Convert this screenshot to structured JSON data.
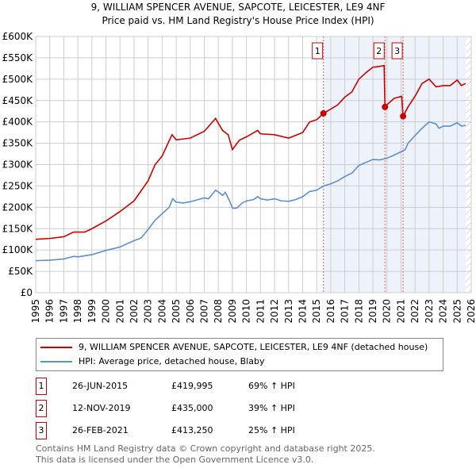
{
  "title": "9, WILLIAM SPENCER AVENUE, SAPCOTE, LEICESTER, LE9 4NF",
  "subtitle": "Price paid vs. HM Land Registry's House Price Index (HPI)",
  "chart_data": {
    "type": "line",
    "title": "9, WILLIAM SPENCER AVENUE, SAPCOTE, LEICESTER, LE9 4NF",
    "subtitle": "Price paid vs. HM Land Registry's House Price Index (HPI)",
    "xlim": [
      1995,
      2026
    ],
    "ylim": [
      0,
      600000
    ],
    "ytick_labels": [
      "£0",
      "£50K",
      "£100K",
      "£150K",
      "£200K",
      "£250K",
      "£300K",
      "£350K",
      "£400K",
      "£450K",
      "£500K",
      "£550K",
      "£600K"
    ],
    "xtick_labels": [
      "1995",
      "1996",
      "1997",
      "1998",
      "1999",
      "2000",
      "2001",
      "2002",
      "2003",
      "2004",
      "2005",
      "2006",
      "2007",
      "2008",
      "2009",
      "2010",
      "2011",
      "2012",
      "2013",
      "2014",
      "2015",
      "2016",
      "2017",
      "2018",
      "2019",
      "2020",
      "2021",
      "2022",
      "2023",
      "2024",
      "2025",
      "2026"
    ],
    "grid": true,
    "series": [
      {
        "name": "9, WILLIAM SPENCER AVENUE, SAPCOTE, LEICESTER, LE9 4NF (detached house)",
        "color": "#cc0000",
        "x": [
          1995,
          1996,
          1997,
          1997.7,
          1998.5,
          1999,
          2000,
          2001,
          2002,
          2003,
          2003.5,
          2004,
          2004.7,
          2005,
          2006,
          2007,
          2007.8,
          2008.3,
          2008.7,
          2009,
          2009.5,
          2010,
          2010.8,
          2011,
          2012,
          2013,
          2014,
          2014.5,
          2015,
          2015.48,
          2016,
          2016.5,
          2017,
          2017.5,
          2018,
          2018.5,
          2019,
          2019.5,
          2019.8,
          2019.86,
          2020,
          2020.5,
          2021.05,
          2021.15,
          2021.5,
          2022,
          2022.5,
          2023,
          2023.5,
          2024,
          2024.5,
          2025,
          2025.3,
          2025.6
        ],
        "y": [
          125000,
          127000,
          131000,
          142000,
          142000,
          150000,
          168000,
          190000,
          215000,
          262000,
          300000,
          320000,
          370000,
          358000,
          362000,
          378000,
          408000,
          380000,
          370000,
          335000,
          357000,
          365000,
          380000,
          372000,
          370000,
          362000,
          375000,
          400000,
          405000,
          419995,
          430000,
          440000,
          458000,
          470000,
          500000,
          515000,
          528000,
          530000,
          532000,
          435000,
          440000,
          455000,
          460000,
          413250,
          435000,
          460000,
          490000,
          500000,
          482000,
          485000,
          485000,
          498000,
          485000,
          490000
        ]
      },
      {
        "name": "HPI: Average price, detached house, Blaby",
        "color": "#5b8fd0",
        "x": [
          1995,
          1996,
          1997,
          1997.7,
          1998,
          1999,
          2000,
          2001,
          2002,
          2002.5,
          2003,
          2003.5,
          2004,
          2004.5,
          2004.75,
          2005,
          2005.5,
          2006,
          2007,
          2007.3,
          2007.8,
          2008,
          2008.3,
          2008.5,
          2008.8,
          2009,
          2009.3,
          2009.7,
          2010,
          2010.5,
          2010.8,
          2011,
          2011.5,
          2012,
          2012.5,
          2013,
          2013.5,
          2014,
          2014.5,
          2015,
          2015.5,
          2016,
          2016.5,
          2017,
          2017.5,
          2018,
          2018.5,
          2019,
          2019.5,
          2020,
          2020.5,
          2021,
          2021.3,
          2021.5,
          2022,
          2022.5,
          2023,
          2023.5,
          2023.7,
          2024,
          2024.5,
          2025,
          2025.3,
          2025.6
        ],
        "y": [
          75000,
          76000,
          79000,
          85000,
          84000,
          89000,
          99000,
          107000,
          122000,
          128000,
          148000,
          170000,
          185000,
          200000,
          220000,
          212000,
          210000,
          213000,
          222000,
          220000,
          240000,
          236000,
          228000,
          235000,
          215000,
          198000,
          198000,
          210000,
          215000,
          218000,
          225000,
          220000,
          217000,
          220000,
          215000,
          214000,
          218000,
          225000,
          237000,
          240000,
          250000,
          255000,
          262000,
          272000,
          280000,
          298000,
          305000,
          312000,
          311000,
          315000,
          322000,
          330000,
          335000,
          350000,
          368000,
          385000,
          400000,
          395000,
          385000,
          390000,
          390000,
          398000,
          390000,
          392000
        ]
      }
    ],
    "sales": [
      {
        "label": "1",
        "x": 2015.48,
        "y": 419995
      },
      {
        "label": "2",
        "x": 2019.86,
        "y": 435000
      },
      {
        "label": "3",
        "x": 2021.15,
        "y": 413250
      }
    ],
    "shaded_from": 2015.48,
    "hatched_from": 2025.6
  },
  "legend": [
    {
      "label": "9, WILLIAM SPENCER AVENUE, SAPCOTE, LEICESTER, LE9 4NF (detached house)",
      "color": "#cc0000"
    },
    {
      "label": "HPI: Average price, detached house, Blaby",
      "color": "#5b8fd0"
    }
  ],
  "table": [
    {
      "num": "1",
      "date": "26-JUN-2015",
      "price": "£419,995",
      "hpi": "69% ↑ HPI"
    },
    {
      "num": "2",
      "date": "12-NOV-2019",
      "price": "£435,000",
      "hpi": "39% ↑ HPI"
    },
    {
      "num": "3",
      "date": "26-FEB-2021",
      "price": "£413,250",
      "hpi": "25% ↑ HPI"
    }
  ],
  "footer": [
    "Contains HM Land Registry data © Crown copyright and database right 2025.",
    "This data is licensed under the Open Government Licence v3.0."
  ]
}
